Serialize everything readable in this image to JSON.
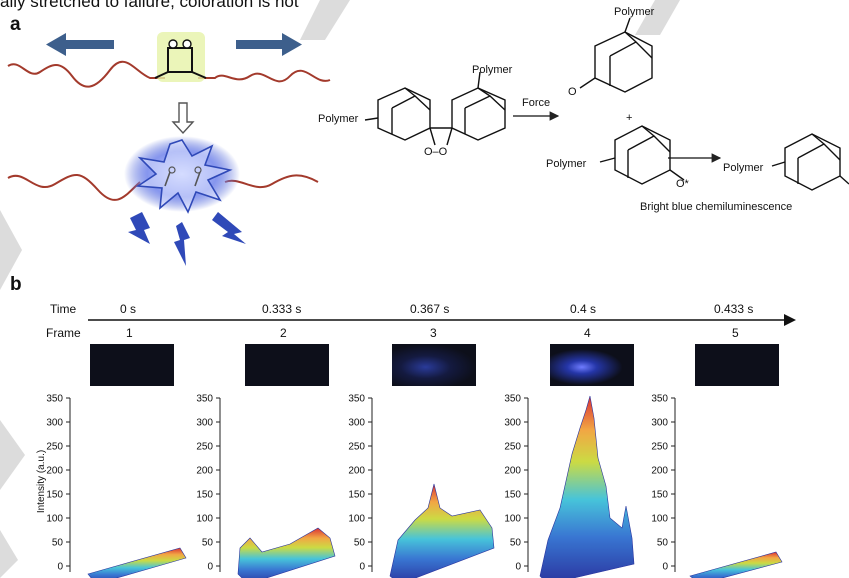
{
  "top_text": "ally stretched to failure, coloration is not",
  "panel_a": {
    "label": "a",
    "polymer": "Polymer",
    "force": "Force",
    "plus": "+",
    "excited": "O*",
    "ketone_o": "O",
    "peroxide_o": "O–O",
    "caption": "Bright blue  chemiluminescence"
  },
  "panel_b": {
    "label": "b",
    "time_label": "Time",
    "frame_label": "Frame",
    "times": [
      "0 s",
      "0.333 s",
      "0.367 s",
      "0.4 s",
      "0.433 s"
    ],
    "frames": [
      "1",
      "2",
      "3",
      "4",
      "5"
    ],
    "ylabel": "Intensity (a.u.)",
    "yticks": [
      "350",
      "300",
      "250",
      "200",
      "150",
      "100",
      "50",
      "0"
    ]
  },
  "colors": {
    "blue_arrow": "#3d5f8c",
    "chain": "#a33a2c",
    "glow": "#4b62d6",
    "bolt": "#2f49b8"
  }
}
